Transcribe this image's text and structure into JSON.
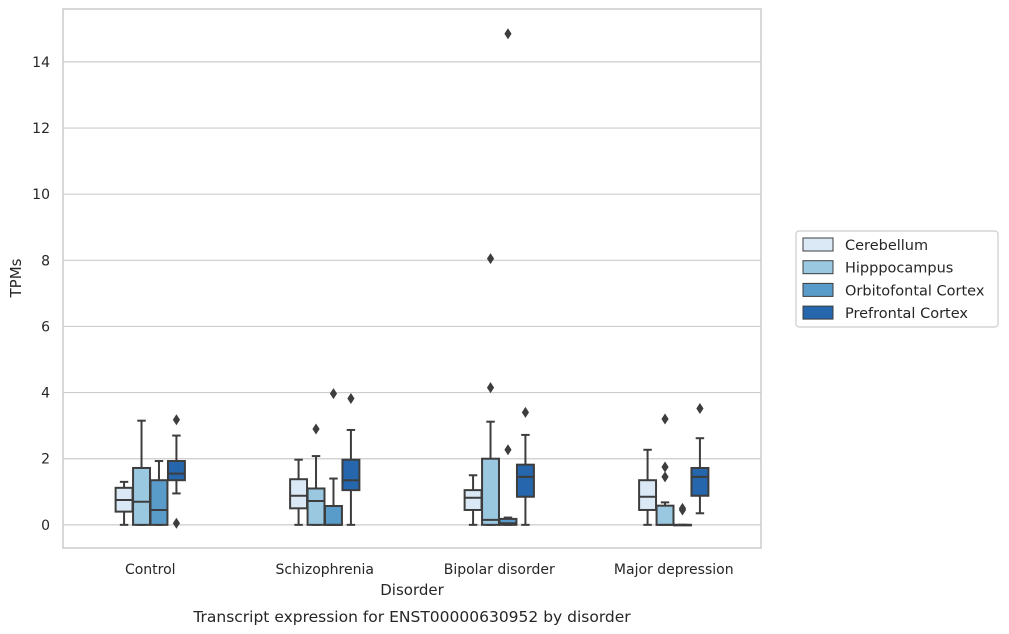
{
  "chart_data": {
    "type": "boxplot",
    "xlabel": "Disorder",
    "ylabel": "TPMs",
    "caption": "Transcript expression for ENST00000630952 by disorder",
    "ylim": [
      -0.7,
      15.6
    ],
    "yticks": [
      0,
      2,
      4,
      6,
      8,
      10,
      12,
      14
    ],
    "grid": "horizontal",
    "legend_placement": "right",
    "categories": [
      "Control",
      "Schizophrenia",
      "Bipolar disorder",
      "Major depression"
    ],
    "series": [
      {
        "name": "Cerebellum",
        "color": "#dbe9f6",
        "boxes": [
          {
            "whislo": 0.0,
            "q1": 0.4,
            "med": 0.75,
            "q3": 1.12,
            "whishi": 1.3,
            "fliers": []
          },
          {
            "whislo": 0.0,
            "q1": 0.5,
            "med": 0.88,
            "q3": 1.38,
            "whishi": 1.97,
            "fliers": []
          },
          {
            "whislo": 0.0,
            "q1": 0.45,
            "med": 0.82,
            "q3": 1.05,
            "whishi": 1.5,
            "fliers": []
          },
          {
            "whislo": 0.0,
            "q1": 0.45,
            "med": 0.85,
            "q3": 1.35,
            "whishi": 2.27,
            "fliers": []
          }
        ]
      },
      {
        "name": "Hipppocampus",
        "color": "#9ac8e0",
        "boxes": [
          {
            "whislo": 0.0,
            "q1": 0.0,
            "med": 0.7,
            "q3": 1.72,
            "whishi": 3.15,
            "fliers": []
          },
          {
            "whislo": 0.0,
            "q1": 0.0,
            "med": 0.72,
            "q3": 1.1,
            "whishi": 2.08,
            "fliers": [
              2.9
            ]
          },
          {
            "whislo": 0.0,
            "q1": 0.0,
            "med": 0.15,
            "q3": 2.0,
            "whishi": 3.12,
            "fliers": [
              4.15,
              8.05
            ]
          },
          {
            "whislo": 0.0,
            "q1": 0.0,
            "med": 0.0,
            "q3": 0.58,
            "whishi": 0.68,
            "fliers": [
              1.45,
              1.75,
              3.2
            ]
          }
        ]
      },
      {
        "name": "Orbitofontal Cortex",
        "color": "#5a9cc9",
        "boxes": [
          {
            "whislo": 0.0,
            "q1": 0.0,
            "med": 0.45,
            "q3": 1.35,
            "whishi": 1.93,
            "fliers": []
          },
          {
            "whislo": 0.0,
            "q1": 0.0,
            "med": 0.0,
            "q3": 0.57,
            "whishi": 1.4,
            "fliers": [
              3.97
            ]
          },
          {
            "whislo": 0.0,
            "q1": 0.0,
            "med": 0.05,
            "q3": 0.18,
            "whishi": 0.22,
            "fliers": [
              2.27,
              14.85
            ]
          },
          {
            "whislo": 0.0,
            "q1": 0.0,
            "med": 0.0,
            "q3": 0.0,
            "whishi": 0.0,
            "fliers": [
              0.45,
              0.5
            ]
          }
        ]
      },
      {
        "name": "Prefrontal Cortex",
        "color": "#2566ac",
        "boxes": [
          {
            "whislo": 0.95,
            "q1": 1.35,
            "med": 1.55,
            "q3": 1.93,
            "whishi": 2.7,
            "fliers": [
              0.05,
              3.18
            ]
          },
          {
            "whislo": 0.0,
            "q1": 1.05,
            "med": 1.35,
            "q3": 1.97,
            "whishi": 2.87,
            "fliers": [
              3.82
            ]
          },
          {
            "whislo": 0.0,
            "q1": 0.85,
            "med": 1.45,
            "q3": 1.82,
            "whishi": 2.72,
            "fliers": [
              3.4
            ]
          },
          {
            "whislo": 0.35,
            "q1": 0.88,
            "med": 1.45,
            "q3": 1.72,
            "whishi": 2.62,
            "fliers": [
              3.52
            ]
          }
        ]
      }
    ]
  }
}
